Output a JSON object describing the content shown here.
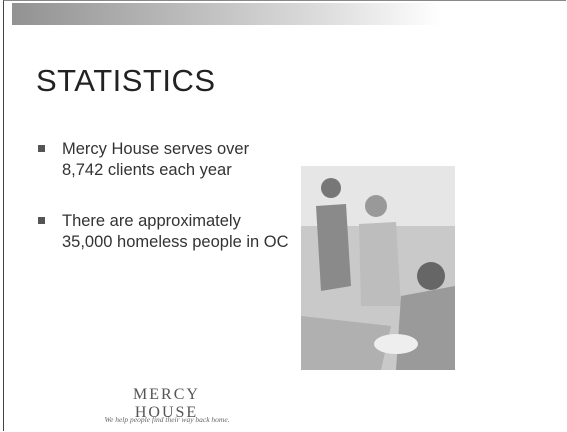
{
  "slide": {
    "title": "STATISTICS",
    "bullets": [
      "Mercy House serves over 8,742 clients each year",
      "There are approximately 35,000 homeless people in OC"
    ],
    "logo": {
      "name": "MERCY HOUSE",
      "tagline": "We help people find their way back home."
    }
  }
}
